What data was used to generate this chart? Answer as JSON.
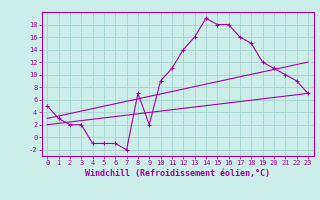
{
  "xlabel": "Windchill (Refroidissement éolien,°C)",
  "bg_color": "#cceee8",
  "grid_color": "#aad8d2",
  "line_color": "#aa00aa",
  "line1_x": [
    0,
    1,
    2,
    3,
    4,
    5,
    6,
    7,
    8,
    9,
    10,
    11,
    12,
    13,
    14,
    15,
    16,
    17,
    18,
    19,
    20,
    21,
    22,
    23
  ],
  "line1_y": [
    5,
    3,
    2,
    2,
    -1,
    -1,
    -1,
    -2,
    7,
    2,
    9,
    11,
    14,
    16,
    19,
    18,
    18,
    16,
    15,
    12,
    11,
    10,
    9,
    7
  ],
  "line2_x": [
    0,
    23
  ],
  "line2_y": [
    2,
    7
  ],
  "line3_x": [
    0,
    23
  ],
  "line3_y": [
    3,
    12
  ],
  "xlim": [
    -0.5,
    23.5
  ],
  "ylim": [
    -3,
    20
  ],
  "yticks": [
    -2,
    0,
    2,
    4,
    6,
    8,
    10,
    12,
    14,
    16,
    18
  ],
  "xticks": [
    0,
    1,
    2,
    3,
    4,
    5,
    6,
    7,
    8,
    9,
    10,
    11,
    12,
    13,
    14,
    15,
    16,
    17,
    18,
    19,
    20,
    21,
    22,
    23
  ],
  "tick_fontsize": 5.0,
  "xlabel_fontsize": 6.0
}
